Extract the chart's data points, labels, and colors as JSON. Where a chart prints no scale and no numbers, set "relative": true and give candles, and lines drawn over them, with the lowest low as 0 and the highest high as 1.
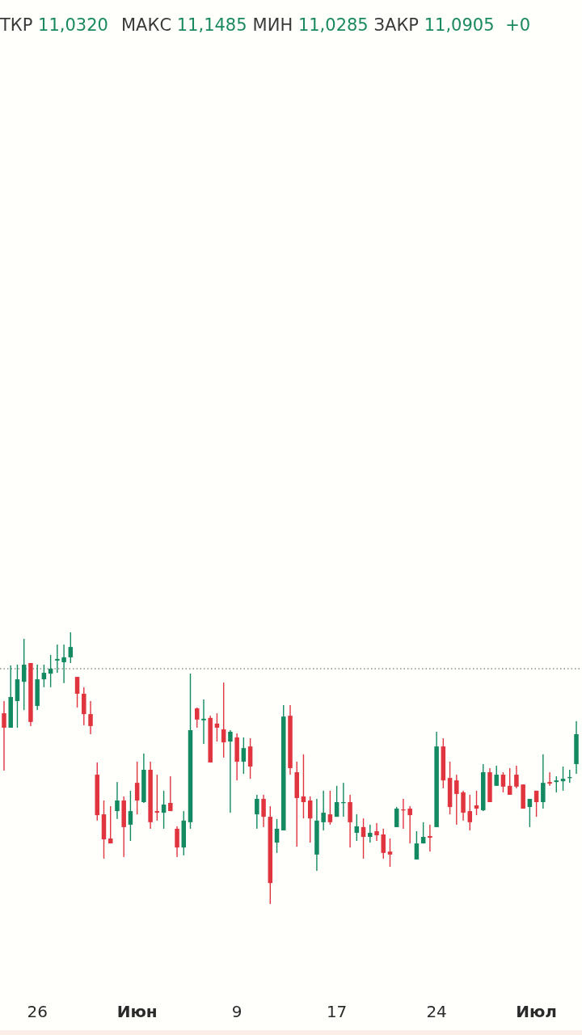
{
  "chart_data": {
    "type": "candlestick",
    "relative": true,
    "annotations": [
      "ТКР 11,0320",
      "МАКС 11,1485",
      "МИН 11,0285",
      "ЗАКР 11,0905",
      "+0"
    ],
    "categories": [
      null,
      null,
      null,
      null,
      null,
      "26",
      null,
      null,
      null,
      null,
      null,
      null,
      null,
      null,
      null,
      null,
      null,
      null,
      null,
      null,
      "Июн",
      null,
      null,
      null,
      null,
      null,
      null,
      null,
      null,
      null,
      null,
      null,
      null,
      null,
      null,
      "9",
      null,
      null,
      null,
      null,
      null,
      null,
      null,
      null,
      null,
      null,
      null,
      null,
      null,
      null,
      "17",
      null,
      null,
      null,
      null,
      null,
      null,
      null,
      null,
      null,
      null,
      null,
      null,
      null,
      null,
      "24",
      null,
      null,
      null,
      null,
      null,
      null,
      null,
      null,
      null,
      null,
      null,
      null,
      null,
      null,
      "Июл",
      null,
      null,
      null,
      null,
      null,
      null
    ],
    "ohlc": [
      [
        0.702,
        0.747,
        0.491,
        0.649
      ],
      [
        0.649,
        0.878,
        0.649,
        0.762
      ],
      [
        0.747,
        0.881,
        0.649,
        0.827
      ],
      [
        0.818,
        0.976,
        0.714,
        0.881
      ],
      [
        0.887,
        0.887,
        0.655,
        0.67
      ],
      [
        0.729,
        0.881,
        0.714,
        0.827
      ],
      [
        0.827,
        0.881,
        0.798,
        0.851
      ],
      [
        0.848,
        0.917,
        0.798,
        0.866
      ],
      [
        0.896,
        0.955,
        0.851,
        0.902
      ],
      [
        0.89,
        0.955,
        0.813,
        0.908
      ],
      [
        0.908,
        1,
        0.887,
        0.946
      ],
      [
        0.836,
        0.836,
        0.723,
        0.774
      ],
      [
        0.774,
        0.798,
        0.658,
        0.699
      ],
      [
        0.699,
        0.747,
        0.625,
        0.655
      ],
      [
        0.476,
        0.521,
        0.307,
        0.327
      ],
      [
        0.33,
        0.381,
        0.167,
        0.238
      ],
      [
        0.241,
        0.36,
        0.223,
        0.223
      ],
      [
        0.342,
        0.449,
        0.313,
        0.381
      ],
      [
        0.381,
        0.396,
        0.173,
        0.283
      ],
      [
        0.292,
        0.417,
        0.232,
        0.342
      ],
      [
        0.446,
        0.524,
        0.33,
        0.381
      ],
      [
        0.375,
        0.554,
        0.372,
        0.494
      ],
      [
        0.494,
        0.524,
        0.277,
        0.301
      ],
      [
        0.342,
        0.476,
        0.307,
        0.336
      ],
      [
        0.336,
        0.417,
        0.277,
        0.366
      ],
      [
        0.372,
        0.47,
        0.342,
        0.342
      ],
      [
        0.277,
        0.286,
        0.173,
        0.208
      ],
      [
        0.208,
        0.342,
        0.179,
        0.307
      ],
      [
        0.301,
        0.848,
        0.277,
        0.64
      ],
      [
        0.72,
        0.723,
        0.649,
        0.679
      ],
      [
        0.676,
        0.753,
        0.589,
        0.682
      ],
      [
        0.685,
        0.693,
        0.521,
        0.521
      ],
      [
        0.664,
        0.702,
        0.598,
        0.649
      ],
      [
        0.643,
        0.815,
        0.539,
        0.595
      ],
      [
        0.598,
        0.64,
        0.336,
        0.634
      ],
      [
        0.613,
        0.628,
        0.455,
        0.524
      ],
      [
        0.524,
        0.613,
        0.479,
        0.574
      ],
      [
        0.58,
        0.61,
        0.461,
        0.506
      ],
      [
        0.33,
        0.402,
        0.277,
        0.387
      ],
      [
        0.387,
        0.402,
        0.283,
        0.321
      ],
      [
        0.321,
        0.36,
        0,
        0.077
      ],
      [
        0.226,
        0.313,
        0.188,
        0.277
      ],
      [
        0.271,
        0.732,
        0.271,
        0.69
      ],
      [
        0.693,
        0.732,
        0.476,
        0.5
      ],
      [
        0.485,
        0.524,
        0.211,
        0.39
      ],
      [
        0.396,
        0.551,
        0.315,
        0.375
      ],
      [
        0.381,
        0.396,
        0.226,
        0.315
      ],
      [
        0.182,
        0.387,
        0.122,
        0.307
      ],
      [
        0.301,
        0.417,
        0.271,
        0.336
      ],
      [
        0.33,
        0.417,
        0.292,
        0.301
      ],
      [
        0.321,
        0.435,
        0.321,
        0.375
      ],
      [
        0.372,
        0.446,
        0.321,
        0.375
      ],
      [
        0.375,
        0.402,
        0.208,
        0.301
      ],
      [
        0.262,
        0.33,
        0.232,
        0.286
      ],
      [
        0.283,
        0.315,
        0.167,
        0.247
      ],
      [
        0.247,
        0.292,
        0.226,
        0.262
      ],
      [
        0.268,
        0.298,
        0.232,
        0.253
      ],
      [
        0.256,
        0.277,
        0.167,
        0.188
      ],
      [
        0.193,
        0.241,
        0.137,
        0.182
      ],
      [
        0.283,
        0.357,
        0.283,
        0.351
      ],
      [
        0.348,
        0.387,
        0.277,
        0.345
      ],
      [
        0.351,
        0.36,
        0.223,
        0.327
      ],
      [
        0.164,
        0.268,
        0.164,
        0.223
      ],
      [
        0.223,
        0.301,
        0.223,
        0.247
      ],
      [
        0.25,
        0.292,
        0.193,
        0.244
      ],
      [
        0.283,
        0.634,
        0.283,
        0.58
      ],
      [
        0.58,
        0.61,
        0.426,
        0.455
      ],
      [
        0.464,
        0.524,
        0.33,
        0.357
      ],
      [
        0.455,
        0.476,
        0.292,
        0.405
      ],
      [
        0.411,
        0.417,
        0.307,
        0.336
      ],
      [
        0.342,
        0.402,
        0.271,
        0.301
      ],
      [
        0.363,
        0.417,
        0.327,
        0.351
      ],
      [
        0.345,
        0.515,
        0.342,
        0.485
      ],
      [
        0.485,
        0.5,
        0.375,
        0.375
      ],
      [
        0.435,
        0.509,
        0.435,
        0.476
      ],
      [
        0.476,
        0.485,
        0.411,
        0.432
      ],
      [
        0.435,
        0.5,
        0.402,
        0.402
      ],
      [
        0.476,
        0.509,
        0.426,
        0.432
      ],
      [
        0.44,
        0.44,
        0.351,
        0.351
      ],
      [
        0.357,
        0.387,
        0.283,
        0.387
      ],
      [
        0.417,
        0.417,
        0.321,
        0.375
      ],
      [
        0.375,
        0.551,
        0.351,
        0.446
      ],
      [
        0.449,
        0.485,
        0.435,
        0.443
      ],
      [
        0.449,
        0.47,
        0.411,
        0.455
      ],
      [
        0.452,
        0.506,
        0.417,
        0.461
      ],
      [
        0.464,
        0.494,
        0.446,
        0.467
      ],
      [
        0.515,
        0.673,
        0.479,
        0.625
      ]
    ],
    "colors": [
      "#e0353f",
      "#138a62",
      "#138a62",
      "#138a62",
      "#e0353f",
      "#138a62",
      "#138a62",
      "#138a62",
      "#138a62",
      "#138a62",
      "#138a62",
      "#e0353f",
      "#e0353f",
      "#e0353f",
      "#e0353f",
      "#e0353f",
      "#e0353f",
      "#138a62",
      "#e0353f",
      "#138a62",
      "#e0353f",
      "#138a62",
      "#e0353f",
      "#e0353f",
      "#138a62",
      "#e0353f",
      "#e0353f",
      "#138a62",
      "#138a62",
      "#e0353f",
      "#138a62",
      "#e0353f",
      "#e0353f",
      "#e0353f",
      "#138a62",
      "#e0353f",
      "#138a62",
      "#e0353f",
      "#138a62",
      "#e0353f",
      "#e0353f",
      "#138a62",
      "#138a62",
      "#e0353f",
      "#e0353f",
      "#e0353f",
      "#e0353f",
      "#138a62",
      "#138a62",
      "#e0353f",
      "#138a62",
      "#138a62",
      "#e0353f",
      "#138a62",
      "#e0353f",
      "#138a62",
      "#e0353f",
      "#e0353f",
      "#e0353f",
      "#138a62",
      "#e0353f",
      "#e0353f",
      "#138a62",
      "#138a62",
      "#e0353f",
      "#138a62",
      "#e0353f",
      "#e0353f",
      "#e0353f",
      "#e0353f",
      "#e0353f",
      "#e0353f",
      "#138a62",
      "#e0353f",
      "#138a62",
      "#e0353f",
      "#e0353f",
      "#e0353f",
      "#e0353f",
      "#138a62",
      "#e0353f",
      "#138a62",
      "#e0353f",
      "#138a62",
      "#138a62",
      "#138a62",
      "#138a62"
    ],
    "ref_lines": [
      {
        "axis": "y",
        "value": 0.866,
        "color": "#555555",
        "line_style": "dotted"
      }
    ]
  }
}
